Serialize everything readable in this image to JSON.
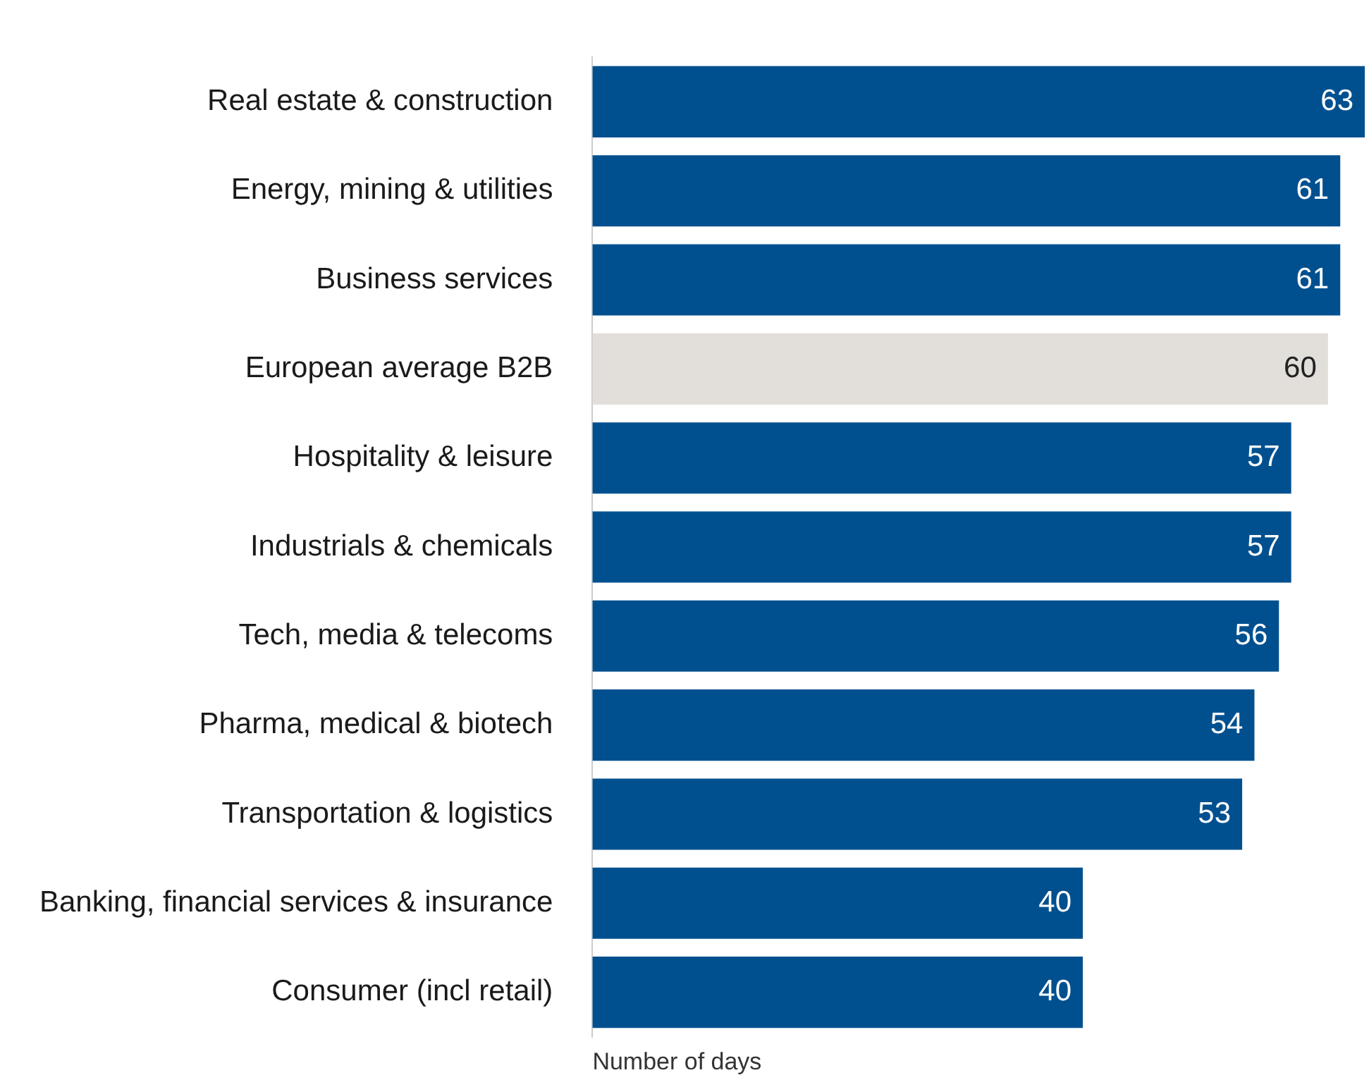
{
  "chart_data": {
    "type": "bar",
    "orientation": "horizontal",
    "xlabel": "Number of days",
    "categories": [
      "Real estate & construction",
      "Energy, mining & utilities",
      "Business services",
      "European average B2B",
      "Hospitality & leisure",
      "Industrials & chemicals",
      "Tech, media & telecoms",
      "Pharma, medical & biotech",
      "Transportation & logistics",
      "Banking, financial services & insurance",
      "Consumer (incl retail)"
    ],
    "values": [
      63,
      61,
      61,
      60,
      57,
      57,
      56,
      54,
      53,
      40,
      40
    ],
    "colors": [
      "#00508f",
      "#00508f",
      "#00508f",
      "#e2dfdb",
      "#00508f",
      "#00508f",
      "#00508f",
      "#00508f",
      "#00508f",
      "#00508f",
      "#00508f"
    ],
    "data_labels": true,
    "grid": false,
    "legend": false
  }
}
